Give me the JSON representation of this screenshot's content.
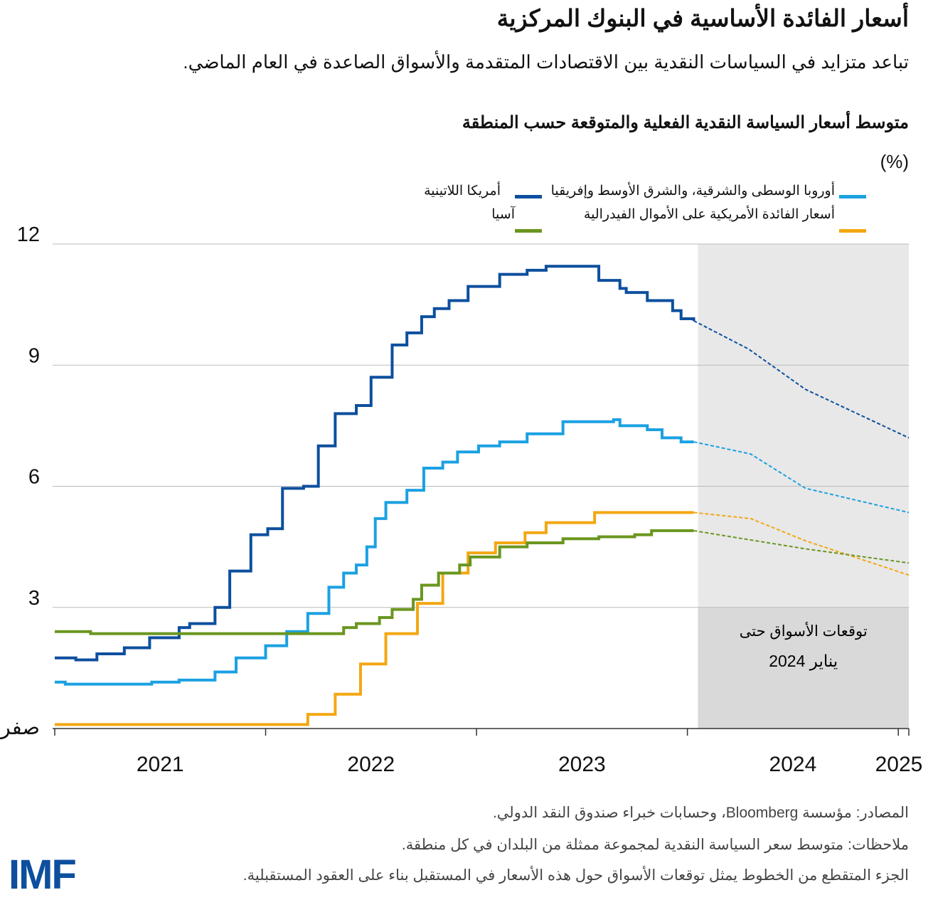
{
  "title": "أسعار الفائدة الأساسية في البنوك المركزية",
  "subtitle": "تباعد متزايد في السياسات النقدية بين الاقتصادات المتقدمة والأسواق الصاعدة في العام الماضي.",
  "footer": {
    "sources": "المصادر: مؤسسة Bloomberg، وحسابات خبراء صندوق النقد الدولي.",
    "notes": "ملاحظات: متوسط سعر السياسة النقدية لمجموعة ممثلة من البلدان في كل منطقة.",
    "dashed_note": "الجزء المتقطع من الخطوط يمثل توقعات الأسواق حول هذه الأسعار في المستقبل بناء على العقود المستقبلية.",
    "logo": "IMF"
  },
  "chart_data": {
    "type": "line",
    "title": "متوسط أسعار السياسة النقدية الفعلية والمتوقعة حسب المنطقة",
    "ylabel": "(%)",
    "xlabel": "",
    "xlim": [
      2020.99,
      2025.05
    ],
    "ylim": [
      0,
      12
    ],
    "yticks": [
      0,
      3,
      6,
      9,
      12
    ],
    "ytick_labels": [
      "صفر",
      "3",
      "6",
      "9",
      "12"
    ],
    "xtick_labels": [
      "2021",
      "2022",
      "2023",
      "2024",
      "2025"
    ],
    "grid": true,
    "legend_position": "top",
    "forecast_region": {
      "start": 2024.05,
      "end": 2025.05,
      "label_line1": "توقعات الأسواق حتى",
      "label_line2": "يناير 2024"
    },
    "series": [
      {
        "name": "أوروبا الوسطى والشرقية، والشرق الأوسط وإفريقيا",
        "color": "#1ba1e2",
        "actual": [
          [
            2021.0,
            1.15
          ],
          [
            2021.05,
            1.1
          ],
          [
            2021.46,
            1.15
          ],
          [
            2021.59,
            1.2
          ],
          [
            2021.76,
            1.4
          ],
          [
            2021.86,
            1.75
          ],
          [
            2022.0,
            2.05
          ],
          [
            2022.1,
            2.4
          ],
          [
            2022.2,
            2.85
          ],
          [
            2022.3,
            3.5
          ],
          [
            2022.37,
            3.85
          ],
          [
            2022.43,
            4.05
          ],
          [
            2022.48,
            4.5
          ],
          [
            2022.52,
            5.2
          ],
          [
            2022.57,
            5.6
          ],
          [
            2022.67,
            5.9
          ],
          [
            2022.75,
            6.45
          ],
          [
            2022.84,
            6.6
          ],
          [
            2022.91,
            6.85
          ],
          [
            2023.01,
            7.0
          ],
          [
            2023.11,
            7.1
          ],
          [
            2023.24,
            7.3
          ],
          [
            2023.41,
            7.6
          ],
          [
            2023.65,
            7.65
          ],
          [
            2023.68,
            7.5
          ],
          [
            2023.81,
            7.4
          ],
          [
            2023.88,
            7.2
          ],
          [
            2023.97,
            7.1
          ],
          [
            2024.03,
            7.1
          ]
        ],
        "forecast": [
          [
            2024.03,
            7.1
          ],
          [
            2024.3,
            6.8
          ],
          [
            2024.56,
            5.95
          ],
          [
            2025.05,
            5.35
          ]
        ]
      },
      {
        "name": "أمريكا اللاتينية",
        "color": "#0d4f9e",
        "actual": [
          [
            2021.0,
            1.75
          ],
          [
            2021.1,
            1.7
          ],
          [
            2021.2,
            1.85
          ],
          [
            2021.33,
            2.0
          ],
          [
            2021.45,
            2.25
          ],
          [
            2021.59,
            2.5
          ],
          [
            2021.64,
            2.6
          ],
          [
            2021.76,
            3.0
          ],
          [
            2021.83,
            3.9
          ],
          [
            2021.93,
            4.8
          ],
          [
            2022.01,
            4.95
          ],
          [
            2022.08,
            5.95
          ],
          [
            2022.18,
            6.0
          ],
          [
            2022.25,
            7.0
          ],
          [
            2022.33,
            7.8
          ],
          [
            2022.43,
            8.0
          ],
          [
            2022.5,
            8.7
          ],
          [
            2022.6,
            9.5
          ],
          [
            2022.67,
            9.8
          ],
          [
            2022.74,
            10.2
          ],
          [
            2022.8,
            10.4
          ],
          [
            2022.87,
            10.6
          ],
          [
            2022.96,
            10.95
          ],
          [
            2023.11,
            11.25
          ],
          [
            2023.24,
            11.35
          ],
          [
            2023.33,
            11.45
          ],
          [
            2023.56,
            11.45
          ],
          [
            2023.58,
            11.1
          ],
          [
            2023.68,
            10.9
          ],
          [
            2023.71,
            10.8
          ],
          [
            2023.81,
            10.6
          ],
          [
            2023.93,
            10.35
          ],
          [
            2023.97,
            10.15
          ],
          [
            2024.03,
            10.1
          ]
        ],
        "forecast": [
          [
            2024.03,
            10.1
          ],
          [
            2024.29,
            9.4
          ],
          [
            2024.56,
            8.4
          ],
          [
            2025.05,
            7.2
          ]
        ]
      },
      {
        "name": "أسعار الفائدة الأمريكية على الأموال الفيدرالية",
        "color": "#f3a712",
        "actual": [
          [
            2021.0,
            0.1
          ],
          [
            2022.2,
            0.1
          ],
          [
            2022.2,
            0.35
          ],
          [
            2022.33,
            0.85
          ],
          [
            2022.45,
            1.6
          ],
          [
            2022.57,
            2.35
          ],
          [
            2022.72,
            3.1
          ],
          [
            2022.84,
            3.85
          ],
          [
            2022.96,
            4.35
          ],
          [
            2023.09,
            4.6
          ],
          [
            2023.23,
            4.85
          ],
          [
            2023.33,
            5.1
          ],
          [
            2023.56,
            5.35
          ],
          [
            2024.03,
            5.35
          ]
        ],
        "forecast": [
          [
            2024.03,
            5.35
          ],
          [
            2024.3,
            5.2
          ],
          [
            2024.56,
            4.65
          ],
          [
            2025.05,
            3.8
          ]
        ]
      },
      {
        "name": "آسيا",
        "color": "#6a961f",
        "actual": [
          [
            2021.0,
            2.4
          ],
          [
            2021.15,
            2.4
          ],
          [
            2021.17,
            2.35
          ],
          [
            2022.33,
            2.35
          ],
          [
            2022.37,
            2.5
          ],
          [
            2022.43,
            2.6
          ],
          [
            2022.54,
            2.75
          ],
          [
            2022.6,
            2.95
          ],
          [
            2022.7,
            3.2
          ],
          [
            2022.74,
            3.55
          ],
          [
            2022.82,
            3.85
          ],
          [
            2022.92,
            4.05
          ],
          [
            2022.97,
            4.25
          ],
          [
            2023.11,
            4.5
          ],
          [
            2023.24,
            4.6
          ],
          [
            2023.41,
            4.7
          ],
          [
            2023.58,
            4.75
          ],
          [
            2023.75,
            4.8
          ],
          [
            2023.83,
            4.9
          ],
          [
            2024.03,
            4.9
          ]
        ],
        "forecast": [
          [
            2024.03,
            4.9
          ],
          [
            2024.56,
            4.45
          ],
          [
            2025.05,
            4.1
          ]
        ]
      }
    ]
  }
}
